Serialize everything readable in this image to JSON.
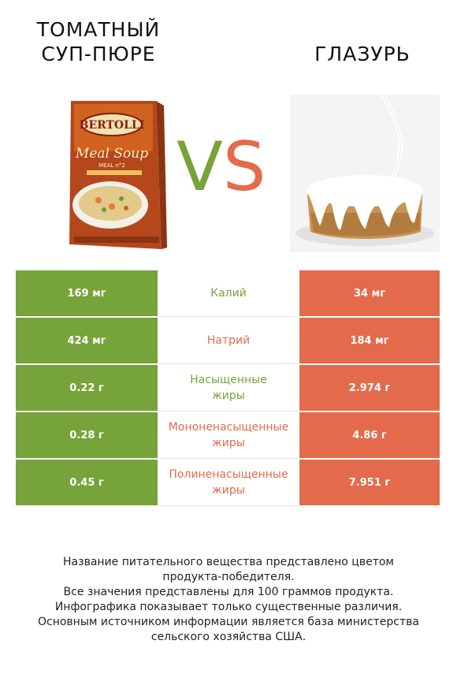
{
  "header": {
    "left_title_line1": "ТОМАТНЫЙ",
    "left_title_line2": "СУП-ПЮРЕ",
    "right_title": "ГЛАЗУРЬ",
    "vs_v": "V",
    "vs_s": "S"
  },
  "products": {
    "left": {
      "box_brand": "BERTOLLI",
      "box_line": "Meal Soup",
      "box_sub": "MEAL n°2"
    }
  },
  "colors": {
    "left": "#76a33a",
    "right": "#e36b4b"
  },
  "rows": [
    {
      "left": "169 мг",
      "label": "Калий",
      "right": "34 мг",
      "winner": "left"
    },
    {
      "left": "424 мг",
      "label": "Натрий",
      "right": "184 мг",
      "winner": "right"
    },
    {
      "left": "0.22 г",
      "label": "Насыщенные жиры",
      "label_line1": "Насыщенные",
      "label_line2": "жиры",
      "right": "2.974 г",
      "winner": "left"
    },
    {
      "left": "0.28 г",
      "label": "Мононенасыщенные жиры",
      "label_line1": "Мононенасыщенные",
      "label_line2": "жиры",
      "right": "4.86 г",
      "winner": "right"
    },
    {
      "left": "0.45 г",
      "label": "Полиненасыщенные жиры",
      "label_line1": "Полиненасыщенные",
      "label_line2": "жиры",
      "right": "7.951 г",
      "winner": "right"
    }
  ],
  "footer": {
    "line1": "Название питательного вещества представлено цветом",
    "line2": "продукта-победителя.",
    "line3": "Все значения представлены для 100 граммов продукта.",
    "line4": "Инфографика показывает только существенные различия.",
    "line5": "Основным источником информации является база министерства",
    "line6": "сельского хозяйства США."
  }
}
